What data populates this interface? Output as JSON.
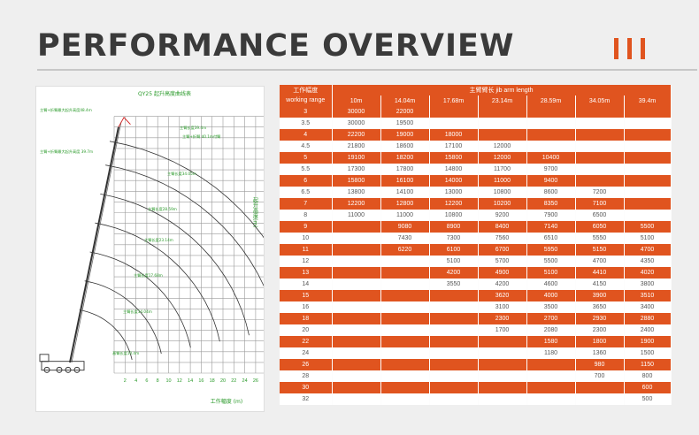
{
  "header": {
    "title": "PERFORMANCE OVERVIEW",
    "accent_color": "#e0541f"
  },
  "chart": {
    "title": "QY25 起升高度曲线表",
    "x_axis_label": "工作幅度 (m)",
    "y_axis_label": "起升高度(m)",
    "x_ticks": [
      "2",
      "4",
      "6",
      "8",
      "10",
      "12",
      "14",
      "16",
      "18",
      "20",
      "22",
      "24",
      "26",
      "28",
      "30"
    ],
    "y_ticks": [
      "2",
      "4",
      "6",
      "8",
      "10",
      "12",
      "14",
      "16",
      "18",
      "20",
      "22",
      "24",
      "26",
      "28",
      "30",
      "32",
      "34",
      "36",
      "38",
      "40",
      "42",
      "44",
      "46",
      "48"
    ],
    "boom_labels": [
      "主臂+折臂最大起升高度48.4m",
      "主臂长度39.4m",
      "主臂长度34.05m",
      "主臂长度28.59m",
      "主臂长度23.14m",
      "主臂长度17.68m",
      "主臂长度14.04m",
      "基臂长度10.4m",
      "主臂+折臂 40.1m付臂",
      "主臂+折臂最大起升高度 39.7m"
    ],
    "colors": {
      "grid": "#9a9a9a",
      "curves": "#333333",
      "labels": "#2a9a2a",
      "jib": "#d22020"
    }
  },
  "table": {
    "corner_cn": "工作幅度",
    "corner_en": "working range",
    "group_header": "主臂臂长 jib arm length",
    "columns": [
      "10m",
      "14.04m",
      "17.68m",
      "23.14m",
      "28.59m",
      "34.05m",
      "39.4m"
    ],
    "rows": [
      {
        "range": "3",
        "cells": [
          "30000",
          "22000",
          "",
          "",
          "",
          "",
          ""
        ]
      },
      {
        "range": "3.5",
        "cells": [
          "30000",
          "19500",
          "",
          "",
          "",
          "",
          ""
        ]
      },
      {
        "range": "4",
        "cells": [
          "22200",
          "19000",
          "18000",
          "",
          "",
          "",
          ""
        ]
      },
      {
        "range": "4.5",
        "cells": [
          "21800",
          "18600",
          "17100",
          "12000",
          "",
          "",
          ""
        ]
      },
      {
        "range": "5",
        "cells": [
          "19100",
          "18200",
          "15800",
          "12000",
          "10400",
          "",
          ""
        ]
      },
      {
        "range": "5.5",
        "cells": [
          "17300",
          "17800",
          "14800",
          "11700",
          "9700",
          "",
          ""
        ]
      },
      {
        "range": "6",
        "cells": [
          "15800",
          "16100",
          "14000",
          "11000",
          "9400",
          "",
          ""
        ]
      },
      {
        "range": "6.5",
        "cells": [
          "13800",
          "14100",
          "13000",
          "10800",
          "8600",
          "7200",
          ""
        ]
      },
      {
        "range": "7",
        "cells": [
          "12200",
          "12800",
          "12200",
          "10200",
          "8350",
          "7100",
          ""
        ]
      },
      {
        "range": "8",
        "cells": [
          "11000",
          "11000",
          "10800",
          "9200",
          "7900",
          "6500",
          ""
        ]
      },
      {
        "range": "9",
        "cells": [
          "",
          "9080",
          "8900",
          "8400",
          "7140",
          "6050",
          "5500"
        ]
      },
      {
        "range": "10",
        "cells": [
          "",
          "7430",
          "7300",
          "7560",
          "6510",
          "5550",
          "5100"
        ]
      },
      {
        "range": "11",
        "cells": [
          "",
          "6220",
          "6100",
          "6700",
          "5950",
          "5150",
          "4700"
        ]
      },
      {
        "range": "12",
        "cells": [
          "",
          "",
          "5100",
          "5700",
          "5500",
          "4700",
          "4350"
        ]
      },
      {
        "range": "13",
        "cells": [
          "",
          "",
          "4200",
          "4900",
          "5100",
          "4410",
          "4020"
        ]
      },
      {
        "range": "14",
        "cells": [
          "",
          "",
          "3550",
          "4200",
          "4600",
          "4150",
          "3800"
        ]
      },
      {
        "range": "15",
        "cells": [
          "",
          "",
          "",
          "3620",
          "4000",
          "3900",
          "3510"
        ]
      },
      {
        "range": "16",
        "cells": [
          "",
          "",
          "",
          "3100",
          "3500",
          "3650",
          "3400"
        ]
      },
      {
        "range": "18",
        "cells": [
          "",
          "",
          "",
          "2300",
          "2700",
          "2930",
          "2880"
        ]
      },
      {
        "range": "20",
        "cells": [
          "",
          "",
          "",
          "1700",
          "2080",
          "2300",
          "2400"
        ]
      },
      {
        "range": "22",
        "cells": [
          "",
          "",
          "",
          "",
          "1580",
          "1800",
          "1900"
        ]
      },
      {
        "range": "24",
        "cells": [
          "",
          "",
          "",
          "",
          "1180",
          "1360",
          "1500"
        ]
      },
      {
        "range": "26",
        "cells": [
          "",
          "",
          "",
          "",
          "",
          "980",
          "1150"
        ]
      },
      {
        "range": "28",
        "cells": [
          "",
          "",
          "",
          "",
          "",
          "700",
          "800"
        ]
      },
      {
        "range": "30",
        "cells": [
          "",
          "",
          "",
          "",
          "",
          "",
          "600"
        ]
      },
      {
        "range": "32",
        "cells": [
          "",
          "",
          "",
          "",
          "",
          "",
          "500"
        ]
      }
    ]
  }
}
